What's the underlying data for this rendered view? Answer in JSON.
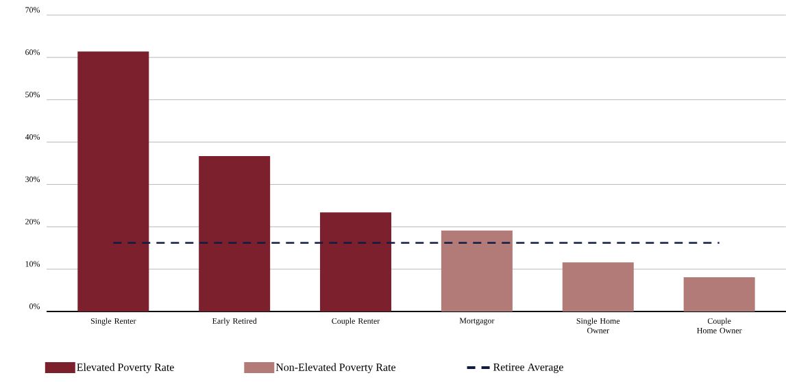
{
  "chart_data": {
    "type": "bar",
    "categories": [
      "Single Renter",
      "Early Retired",
      "Couple Renter",
      "Mortgagor",
      "Single Home Owner",
      "Couple Home Owner"
    ],
    "series": [
      {
        "name": "Elevated Poverty Rate",
        "color": "#7b202c",
        "values": [
          61.4,
          36.7,
          23.4,
          null,
          null,
          null
        ]
      },
      {
        "name": "Non-Elevated Poverty Rate",
        "color": "#b27b77",
        "values": [
          null,
          null,
          null,
          19.1,
          11.6,
          8.1
        ]
      }
    ],
    "ylim": [
      0,
      70
    ],
    "yticks": [
      {
        "value": 0,
        "label": "0%"
      },
      {
        "value": 10,
        "label": "10%"
      },
      {
        "value": 20,
        "label": "20%"
      },
      {
        "value": 30,
        "label": "30%"
      },
      {
        "value": 40,
        "label": "40%"
      },
      {
        "value": 50,
        "label": "50%"
      },
      {
        "value": 60,
        "label": "60%"
      },
      {
        "value": 70,
        "label": "70%"
      }
    ],
    "ref_lines": [
      {
        "axis": "y",
        "value": 16.2,
        "label": "Retiree Average",
        "color": "#0d1b45",
        "line_style": "dashed"
      }
    ],
    "grid": "y",
    "legend": "bottom"
  }
}
